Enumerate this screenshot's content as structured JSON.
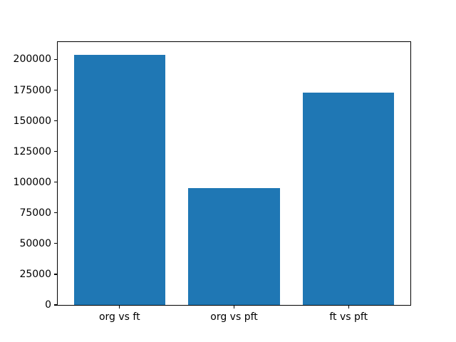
{
  "chart_data": {
    "type": "bar",
    "categories": [
      "org vs ft",
      "org vs pft",
      "ft vs pft"
    ],
    "values": [
      204000,
      95000,
      173000
    ],
    "title": "",
    "xlabel": "",
    "ylabel": "",
    "ylim": [
      0,
      214200
    ],
    "yticks": [
      0,
      25000,
      50000,
      75000,
      100000,
      125000,
      150000,
      175000,
      200000
    ],
    "bar_color": "#1f77b4",
    "grid": false,
    "legend": null,
    "layout": {
      "bar_width_data_units": 0.8,
      "x_margin_data_units": 0.54,
      "background": "#ffffff",
      "spine_color": "#000000",
      "text_color": "#000000"
    }
  }
}
